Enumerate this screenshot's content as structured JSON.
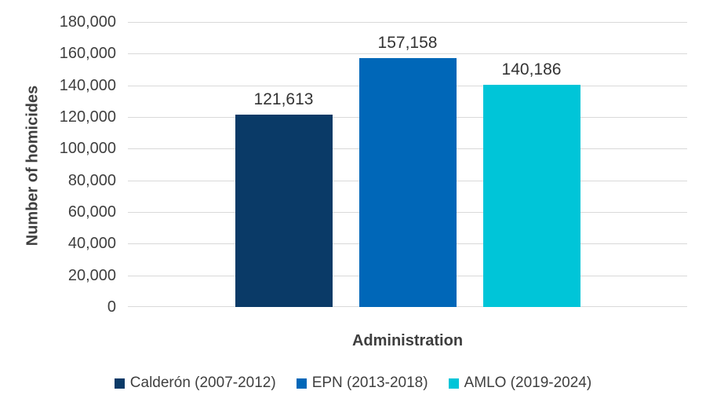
{
  "chart_data": {
    "type": "bar",
    "title": "",
    "xlabel": "Administration",
    "ylabel": "Number of homicides",
    "categories": [
      "Calderón (2007-2012)",
      "EPN (2013-2018)",
      "AMLO (2019-2024)"
    ],
    "values": [
      121613,
      157158,
      140186
    ],
    "value_labels": [
      "121,613",
      "157,158",
      "140,186"
    ],
    "bar_colors": [
      "#0a3a67",
      "#0067b8",
      "#00c5d8"
    ],
    "ylim": [
      0,
      180000
    ],
    "ytick_step": 20000,
    "ytick_labels": [
      "180,000",
      "160,000",
      "140,000",
      "120,000",
      "100,000",
      "80,000",
      "60,000",
      "40,000",
      "20,000",
      "0"
    ],
    "grid": true,
    "legend_position": "bottom"
  },
  "colors": {
    "background": "#ffffff",
    "gridline": "#d9d9d9",
    "axis_text": "#3f3f3f",
    "value_label_text": "#333333"
  }
}
